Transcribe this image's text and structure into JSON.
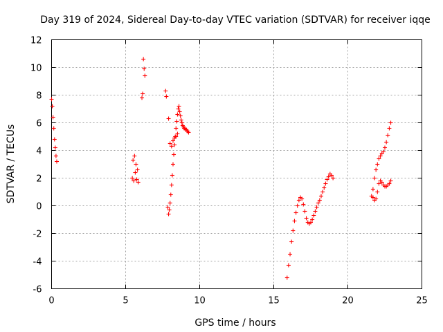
{
  "chart_data": {
    "type": "scatter",
    "title": "Day 319 of 2024, Sidereal Day-to-day VTEC variation (SDTVAR) for receiver iqqe",
    "xlabel": "GPS time / hours",
    "ylabel": "SDTVAR / TECUs",
    "xlim": [
      0,
      25
    ],
    "ylim": [
      -6,
      12
    ],
    "xticks": [
      0,
      5,
      10,
      15,
      20,
      25
    ],
    "yticks": [
      -6,
      -4,
      -2,
      0,
      2,
      4,
      6,
      8,
      10,
      12
    ],
    "grid": true,
    "marker": "+",
    "color": "#ff0000",
    "series": [
      {
        "name": "SDTVAR",
        "x": [
          0.0,
          0.05,
          0.1,
          0.15,
          0.2,
          0.25,
          0.3,
          0.35,
          5.45,
          5.5,
          5.55,
          5.6,
          5.65,
          5.7,
          5.75,
          5.8,
          5.85,
          6.1,
          6.15,
          6.2,
          6.25,
          6.3,
          7.7,
          7.75,
          7.85,
          7.9,
          7.95,
          8.0,
          8.05,
          8.1,
          8.15,
          8.2,
          8.25,
          8.3,
          8.35,
          8.4,
          8.45,
          8.5,
          8.55,
          8.6,
          8.65,
          8.7,
          8.75,
          8.8,
          8.85,
          8.9,
          8.95,
          9.0,
          9.05,
          9.1,
          9.15,
          9.2,
          9.25,
          7.9,
          8.0,
          8.1,
          8.2,
          8.3,
          8.4,
          8.5,
          15.9,
          16.0,
          16.1,
          16.2,
          16.3,
          16.4,
          16.5,
          16.6,
          16.7,
          16.8,
          16.9,
          17.0,
          17.1,
          17.2,
          17.3,
          17.4,
          17.5,
          17.6,
          17.7,
          17.8,
          17.9,
          18.0,
          18.1,
          18.2,
          18.3,
          18.4,
          18.5,
          18.6,
          18.7,
          18.8,
          18.9,
          19.0,
          21.6,
          21.7,
          21.8,
          21.9,
          22.0,
          22.1,
          22.2,
          22.3,
          22.4,
          22.5,
          22.6,
          22.7,
          22.8,
          22.9,
          21.7,
          21.8,
          21.9,
          22.0,
          22.1,
          22.2,
          22.3,
          22.4,
          22.5,
          22.6,
          22.7,
          22.8,
          22.9
        ],
        "y": [
          7.7,
          7.2,
          6.4,
          5.6,
          4.8,
          4.2,
          3.6,
          3.2,
          2.0,
          3.3,
          1.8,
          3.6,
          2.4,
          3.0,
          1.9,
          2.6,
          1.7,
          7.8,
          8.1,
          10.6,
          9.9,
          9.4,
          8.3,
          7.9,
          -0.1,
          -0.6,
          -0.3,
          0.2,
          0.8,
          1.5,
          2.2,
          3.0,
          3.7,
          4.4,
          5.0,
          5.6,
          6.1,
          6.6,
          7.0,
          7.2,
          6.8,
          6.5,
          6.2,
          6.0,
          5.8,
          5.7,
          5.6,
          5.6,
          5.5,
          5.5,
          5.4,
          5.4,
          5.3,
          6.3,
          4.5,
          4.3,
          4.7,
          4.9,
          5.0,
          5.2,
          -5.2,
          -4.3,
          -3.5,
          -2.6,
          -1.8,
          -1.1,
          -0.5,
          0.0,
          0.4,
          0.6,
          0.5,
          0.1,
          -0.4,
          -0.9,
          -1.2,
          -1.3,
          -1.2,
          -1.0,
          -0.7,
          -0.4,
          -0.1,
          0.2,
          0.4,
          0.7,
          1.0,
          1.3,
          1.6,
          1.9,
          2.1,
          2.3,
          2.2,
          2.0,
          0.7,
          1.2,
          2.0,
          2.6,
          3.0,
          3.4,
          3.6,
          3.8,
          3.9,
          4.2,
          4.6,
          5.1,
          5.6,
          6.0,
          0.6,
          0.4,
          0.5,
          1.0,
          1.6,
          1.8,
          1.7,
          1.5,
          1.4,
          1.4,
          1.5,
          1.6,
          1.8
        ]
      }
    ]
  }
}
